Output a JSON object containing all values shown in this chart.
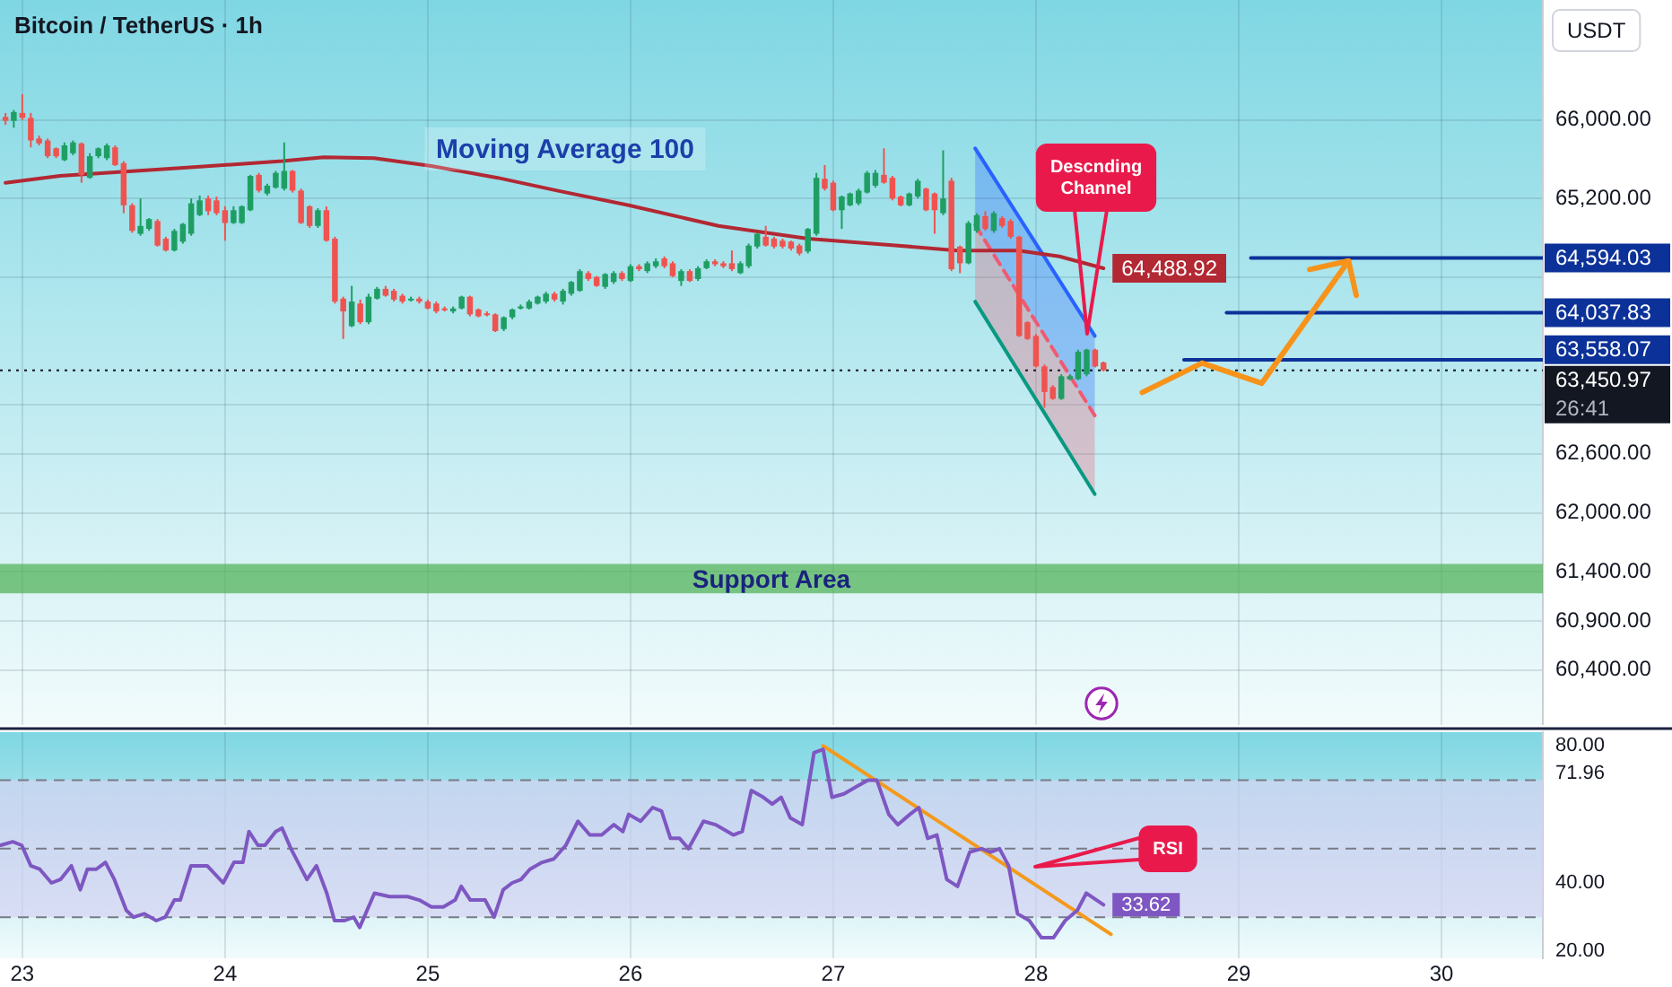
{
  "chart_data": [
    {
      "type": "candlestick",
      "title": "Bitcoin / TetherUS · 1h",
      "ylabel": "USDT",
      "x": [
        22.917,
        22.958,
        23,
        23.042,
        23.083,
        23.125,
        23.167,
        23.208,
        23.25,
        23.292,
        23.333,
        23.375,
        23.417,
        23.458,
        23.5,
        23.542,
        23.583,
        23.625,
        23.667,
        23.708,
        23.75,
        23.792,
        23.833,
        23.875,
        23.917,
        23.958,
        24,
        24.042,
        24.083,
        24.125,
        24.167,
        24.208,
        24.25,
        24.292,
        24.333,
        24.375,
        24.417,
        24.458,
        24.5,
        24.542,
        24.583,
        24.625,
        24.667,
        24.708,
        24.75,
        24.792,
        24.833,
        24.875,
        24.917,
        24.958,
        25,
        25.042,
        25.083,
        25.125,
        25.167,
        25.208,
        25.25,
        25.292,
        25.333,
        25.375,
        25.417,
        25.458,
        25.5,
        25.542,
        25.583,
        25.625,
        25.667,
        25.708,
        25.75,
        25.792,
        25.833,
        25.875,
        25.917,
        25.958,
        26,
        26.042,
        26.083,
        26.125,
        26.167,
        26.208,
        26.25,
        26.292,
        26.333,
        26.375,
        26.417,
        26.458,
        26.5,
        26.542,
        26.583,
        26.625,
        26.667,
        26.708,
        26.75,
        26.792,
        26.833,
        26.875,
        26.917,
        26.958,
        27,
        27.042,
        27.083,
        27.125,
        27.167,
        27.208,
        27.25,
        27.292,
        27.333,
        27.375,
        27.417,
        27.458,
        27.5,
        27.542,
        27.583,
        27.625,
        27.667,
        27.708,
        27.75,
        27.792,
        27.833,
        27.875,
        27.917,
        27.958,
        28,
        28.042,
        28.083,
        28.125,
        28.167,
        28.208,
        28.25,
        28.292,
        28.333
      ],
      "ohlc": [
        [
          66030,
          66070,
          65950,
          65990
        ],
        [
          65990,
          66100,
          65920,
          66080
        ],
        [
          66070,
          66260,
          66000,
          66020
        ],
        [
          66020,
          66070,
          65720,
          65790
        ],
        [
          65810,
          65840,
          65740,
          65760
        ],
        [
          65790,
          65810,
          65610,
          65630
        ],
        [
          65710,
          65720,
          65610,
          65630
        ],
        [
          65590,
          65770,
          65580,
          65740
        ],
        [
          65660,
          65790,
          65640,
          65770
        ],
        [
          65760,
          65770,
          65360,
          65440
        ],
        [
          65410,
          65660,
          65400,
          65630
        ],
        [
          65630,
          65720,
          65610,
          65710
        ],
        [
          65610,
          65760,
          65590,
          65740
        ],
        [
          65720,
          65740,
          65530,
          65540
        ],
        [
          65560,
          65580,
          65050,
          65130
        ],
        [
          65130,
          65150,
          64850,
          64870
        ],
        [
          64840,
          65200,
          64820,
          64920
        ],
        [
          64890,
          65000,
          64870,
          64990
        ],
        [
          64970,
          64990,
          64710,
          64720
        ],
        [
          64790,
          64810,
          64660,
          64670
        ],
        [
          64670,
          64890,
          64660,
          64870
        ],
        [
          64760,
          64950,
          64740,
          64940
        ],
        [
          64840,
          65200,
          64820,
          65150
        ],
        [
          65030,
          65230,
          65020,
          65180
        ],
        [
          65200,
          65230,
          65030,
          65070
        ],
        [
          65180,
          65220,
          65030,
          65050
        ],
        [
          65080,
          65120,
          64770,
          64950
        ],
        [
          64950,
          65120,
          64940,
          65080
        ],
        [
          64950,
          65130,
          64940,
          65120
        ],
        [
          65080,
          65440,
          65070,
          65430
        ],
        [
          65440,
          65460,
          65260,
          65280
        ],
        [
          65250,
          65350,
          65230,
          65330
        ],
        [
          65310,
          65480,
          65300,
          65460
        ],
        [
          65300,
          65770,
          65280,
          65480
        ],
        [
          65480,
          65490,
          65260,
          65280
        ],
        [
          65280,
          65300,
          64940,
          64950
        ],
        [
          65120,
          65130,
          64900,
          64920
        ],
        [
          64920,
          65100,
          64900,
          65080
        ],
        [
          65080,
          65120,
          64760,
          64770
        ],
        [
          64790,
          64810,
          64130,
          64150
        ],
        [
          64180,
          64200,
          63770,
          64050
        ],
        [
          63900,
          64310,
          63890,
          64150
        ],
        [
          64130,
          64170,
          63920,
          63940
        ],
        [
          63940,
          64230,
          63920,
          64200
        ],
        [
          64180,
          64300,
          64170,
          64280
        ],
        [
          64280,
          64310,
          64200,
          64210
        ],
        [
          64260,
          64280,
          64150,
          64170
        ],
        [
          64210,
          64230,
          64130,
          64150
        ],
        [
          64170,
          64200,
          64150,
          64180
        ],
        [
          64180,
          64200,
          64130,
          64150
        ],
        [
          64150,
          64170,
          64070,
          64080
        ],
        [
          64130,
          64150,
          64030,
          64050
        ],
        [
          64080,
          64100,
          64050,
          64070
        ],
        [
          64050,
          64100,
          64030,
          64080
        ],
        [
          64080,
          64210,
          64070,
          64200
        ],
        [
          64200,
          64210,
          64000,
          64020
        ],
        [
          64070,
          64080,
          63990,
          64000
        ],
        [
          64030,
          64050,
          64000,
          64020
        ],
        [
          64020,
          64030,
          63840,
          63850
        ],
        [
          63870,
          64000,
          63850,
          63990
        ],
        [
          63990,
          64080,
          63970,
          64070
        ],
        [
          64080,
          64120,
          64070,
          64100
        ],
        [
          64080,
          64170,
          64070,
          64150
        ],
        [
          64130,
          64210,
          64120,
          64200
        ],
        [
          64150,
          64250,
          64130,
          64230
        ],
        [
          64230,
          64250,
          64150,
          64170
        ],
        [
          64150,
          64280,
          64120,
          64260
        ],
        [
          64230,
          64360,
          64210,
          64350
        ],
        [
          64260,
          64480,
          64250,
          64460
        ],
        [
          64440,
          64460,
          64360,
          64380
        ],
        [
          64400,
          64410,
          64300,
          64310
        ],
        [
          64300,
          64440,
          64280,
          64430
        ],
        [
          64350,
          64460,
          64330,
          64440
        ],
        [
          64440,
          64460,
          64360,
          64380
        ],
        [
          64360,
          64530,
          64350,
          64510
        ],
        [
          64510,
          64530,
          64460,
          64480
        ],
        [
          64460,
          64560,
          64440,
          64540
        ],
        [
          64510,
          64590,
          64490,
          64560
        ],
        [
          64590,
          64610,
          64490,
          64510
        ],
        [
          64540,
          64560,
          64400,
          64410
        ],
        [
          64360,
          64480,
          64310,
          64460
        ],
        [
          64460,
          64480,
          64350,
          64360
        ],
        [
          64380,
          64510,
          64360,
          64490
        ],
        [
          64490,
          64580,
          64480,
          64560
        ],
        [
          64560,
          64580,
          64510,
          64530
        ],
        [
          64540,
          64560,
          64490,
          64510
        ],
        [
          64540,
          64670,
          64460,
          64480
        ],
        [
          64440,
          64560,
          64430,
          64540
        ],
        [
          64510,
          64740,
          64490,
          64720
        ],
        [
          64710,
          64850,
          64690,
          64840
        ],
        [
          64810,
          64920,
          64710,
          64720
        ],
        [
          64790,
          64810,
          64690,
          64710
        ],
        [
          64770,
          64790,
          64690,
          64710
        ],
        [
          64760,
          64770,
          64670,
          64690
        ],
        [
          64720,
          64740,
          64620,
          64640
        ],
        [
          64660,
          64900,
          64640,
          64890
        ],
        [
          64840,
          65460,
          64820,
          65410
        ],
        [
          65400,
          65540,
          65280,
          65300
        ],
        [
          65360,
          65380,
          65070,
          65080
        ],
        [
          65080,
          65230,
          64890,
          65220
        ],
        [
          65130,
          65260,
          65120,
          65250
        ],
        [
          65150,
          65300,
          65130,
          65280
        ],
        [
          65260,
          65480,
          65250,
          65460
        ],
        [
          65330,
          65490,
          65310,
          65460
        ],
        [
          65440,
          65710,
          65350,
          65360
        ],
        [
          65410,
          65430,
          65180,
          65200
        ],
        [
          65220,
          65230,
          65120,
          65130
        ],
        [
          65130,
          65260,
          65120,
          65250
        ],
        [
          65220,
          65400,
          65200,
          65380
        ],
        [
          65300,
          65310,
          65070,
          65080
        ],
        [
          65250,
          65260,
          64840,
          65080
        ],
        [
          65050,
          65690,
          65030,
          65200
        ],
        [
          65380,
          65410,
          64460,
          64480
        ],
        [
          64710,
          64720,
          64440,
          64540
        ],
        [
          64540,
          64970,
          64530,
          64950
        ],
        [
          64870,
          65050,
          64850,
          65030
        ],
        [
          65020,
          65070,
          64870,
          64890
        ],
        [
          64870,
          65070,
          64850,
          65050
        ],
        [
          65000,
          65020,
          64900,
          64920
        ],
        [
          64970,
          64990,
          64790,
          64810
        ],
        [
          64810,
          64820,
          63790,
          63800
        ],
        [
          63940,
          63950,
          63760,
          63770
        ],
        [
          63800,
          63820,
          63480,
          63490
        ],
        [
          63490,
          63510,
          63070,
          63230
        ],
        [
          63280,
          63300,
          63150,
          63160
        ],
        [
          63160,
          63410,
          63150,
          63390
        ],
        [
          63360,
          63410,
          63350,
          63390
        ],
        [
          63360,
          63660,
          63350,
          63640
        ],
        [
          63410,
          63670,
          63390,
          63660
        ],
        [
          63660,
          63670,
          63480,
          63490
        ],
        [
          63530,
          63540,
          63440,
          63450.97
        ]
      ],
      "colors": [
        "#ef5350",
        "#1f9e63",
        "#ef5350",
        "#ef5350",
        "#ef5350",
        "#ef5350",
        "#ef5350",
        "#1f9e63",
        "#1f9e63",
        "#ef5350",
        "#1f9e63",
        "#1f9e63",
        "#1f9e63",
        "#ef5350",
        "#ef5350",
        "#ef5350",
        "#1f9e63",
        "#1f9e63",
        "#ef5350",
        "#ef5350",
        "#1f9e63",
        "#1f9e63",
        "#1f9e63",
        "#1f9e63",
        "#ef5350",
        "#ef5350",
        "#ef5350",
        "#1f9e63",
        "#1f9e63",
        "#1f9e63",
        "#ef5350",
        "#1f9e63",
        "#1f9e63",
        "#1f9e63",
        "#ef5350",
        "#ef5350",
        "#ef5350",
        "#1f9e63",
        "#ef5350",
        "#ef5350",
        "#ef5350",
        "#1f9e63",
        "#ef5350",
        "#1f9e63",
        "#1f9e63",
        "#ef5350",
        "#ef5350",
        "#ef5350",
        "#1f9e63",
        "#ef5350",
        "#ef5350",
        "#ef5350",
        "#ef5350",
        "#1f9e63",
        "#1f9e63",
        "#ef5350",
        "#ef5350",
        "#ef5350",
        "#ef5350",
        "#1f9e63",
        "#1f9e63",
        "#1f9e63",
        "#1f9e63",
        "#1f9e63",
        "#1f9e63",
        "#ef5350",
        "#1f9e63",
        "#1f9e63",
        "#1f9e63",
        "#ef5350",
        "#ef5350",
        "#1f9e63",
        "#1f9e63",
        "#ef5350",
        "#1f9e63",
        "#ef5350",
        "#1f9e63",
        "#1f9e63",
        "#ef5350",
        "#ef5350",
        "#1f9e63",
        "#ef5350",
        "#1f9e63",
        "#1f9e63",
        "#ef5350",
        "#ef5350",
        "#ef5350",
        "#1f9e63",
        "#1f9e63",
        "#1f9e63",
        "#ef5350",
        "#ef5350",
        "#ef5350",
        "#ef5350",
        "#ef5350",
        "#1f9e63",
        "#1f9e63",
        "#ef5350",
        "#ef5350",
        "#1f9e63",
        "#1f9e63",
        "#1f9e63",
        "#1f9e63",
        "#1f9e63",
        "#ef5350",
        "#ef5350",
        "#ef5350",
        "#1f9e63",
        "#1f9e63",
        "#ef5350",
        "#ef5350",
        "#1f9e63",
        "#ef5350",
        "#ef5350",
        "#1f9e63",
        "#1f9e63",
        "#ef5350",
        "#1f9e63",
        "#ef5350",
        "#ef5350",
        "#ef5350",
        "#ef5350",
        "#ef5350",
        "#ef5350",
        "#ef5350",
        "#1f9e63",
        "#1f9e63",
        "#1f9e63",
        "#1f9e63",
        "#ef5350",
        "#ef5350"
      ],
      "series": [
        {
          "type": "line",
          "color": "#b22833",
          "x": [
            22.917,
            23.186,
            23.779,
            24.283,
            24.487,
            24.735,
            25.018,
            25.345,
            25.637,
            25.991,
            26.434,
            26.876,
            27.319,
            27.611,
            27.912,
            28.115,
            28.333
          ],
          "values": [
            65360,
            65430,
            65510,
            65580,
            65620,
            65610,
            65530,
            65410,
            65280,
            65130,
            64920,
            64790,
            64720,
            64670,
            64670,
            64610,
            64488.92
          ],
          "value_labels": [
            null,
            null,
            null,
            null,
            null,
            null,
            null,
            null,
            null,
            null,
            null,
            null,
            null,
            null,
            null,
            null,
            "64,488.92"
          ]
        },
        {
          "type": "line",
          "color": "#2962ff",
          "x": [
            27.7,
            28.29
          ],
          "values": [
            65710,
            63800
          ],
          "lower": [
            64930,
            62990
          ],
          "upper": [
            65710,
            63800
          ]
        },
        {
          "type": "line",
          "color": "#ef5a72",
          "line_style": "dashed",
          "x": [
            27.7,
            28.29
          ],
          "values": [
            64930,
            62990
          ],
          "lower": [
            64150,
            62190
          ],
          "upper": [
            64930,
            62990
          ]
        },
        {
          "type": "line",
          "color": "#089981",
          "x": [
            27.7,
            28.29
          ],
          "values": [
            64150,
            62190
          ]
        },
        {
          "type": "line",
          "color": "#0c3299",
          "x": [
            29.06,
            30.5
          ],
          "values": [
            64594.03,
            64594.03
          ],
          "value_labels": [
            null,
            "64,594.03"
          ]
        },
        {
          "type": "line",
          "color": "#0c3299",
          "x": [
            28.94,
            30.5
          ],
          "values": [
            64037.83,
            64037.83
          ],
          "value_labels": [
            null,
            "64,037.83"
          ]
        },
        {
          "type": "line",
          "color": "#0c3299",
          "x": [
            28.73,
            30.5
          ],
          "values": [
            63558.07,
            63558.07
          ],
          "value_labels": [
            null,
            "63,558.07"
          ]
        }
      ],
      "ref_lines": [
        {
          "axis": "y",
          "value": 63450.97,
          "label": "63,450.97",
          "color": "#131722",
          "line_style": "dotted"
        }
      ],
      "bands": [
        {
          "axis": "y",
          "from": 61180,
          "to": 61480,
          "label": "Support Area",
          "color": "#4caf50"
        }
      ],
      "annotations": [
        "Moving Average 100",
        "Descnding Channel",
        "26:41"
      ],
      "xlim": [
        22.89,
        30.5
      ],
      "xticks": [
        23,
        24,
        25,
        26,
        27,
        28,
        29,
        30
      ],
      "ylim": [
        59840,
        67220
      ],
      "yticks": [
        {
          "value": 60400,
          "label": "60,400.00"
        },
        {
          "value": 60900,
          "label": "60,900.00"
        },
        {
          "value": 61400,
          "label": "61,400.00"
        },
        {
          "value": 62000,
          "label": "62,000.00"
        },
        {
          "value": 62600,
          "label": "62,600.00"
        },
        {
          "value": 63100,
          "label": null
        },
        {
          "value": 64400,
          "label": null
        },
        {
          "value": 65200,
          "label": "65,200.00"
        },
        {
          "value": 66000,
          "label": "66,000.00"
        }
      ],
      "grid": true,
      "tick_labels": "y"
    },
    {
      "type": "line",
      "series": [
        {
          "color": "#7e57c2",
          "x": [
            22.894,
            22.953,
            22.997,
            23.042,
            23.086,
            23.144,
            23.188,
            23.242,
            23.286,
            23.321,
            23.365,
            23.41,
            23.454,
            23.513,
            23.549,
            23.602,
            23.661,
            23.705,
            23.75,
            23.779,
            23.832,
            23.912,
            23.991,
            24.044,
            24.088,
            24.118,
            24.162,
            24.197,
            24.25,
            24.281,
            24.325,
            24.404,
            24.451,
            24.502,
            24.54,
            24.59,
            24.635,
            24.664,
            24.737,
            24.812,
            24.9,
            24.958,
            25.018,
            25.077,
            25.135,
            25.165,
            25.21,
            25.283,
            25.327,
            25.372,
            25.416,
            25.46,
            25.504,
            25.564,
            25.622,
            25.681,
            25.741,
            25.799,
            25.858,
            25.918,
            25.962,
            25.991,
            26.05,
            26.109,
            26.153,
            26.197,
            26.242,
            26.286,
            26.36,
            26.419,
            26.507,
            26.551,
            26.596,
            26.655,
            26.699,
            26.743,
            26.788,
            26.847,
            26.905,
            26.95,
            26.994,
            27.053,
            27.112,
            27.171,
            27.215,
            27.274,
            27.319,
            27.378,
            27.422,
            27.466,
            27.511,
            27.56,
            27.613,
            27.673,
            27.732,
            27.776,
            27.82,
            27.865,
            27.909,
            27.967,
            28.027,
            28.086,
            28.144,
            28.204,
            28.248,
            28.333
          ],
          "values": [
            51,
            52,
            51,
            45,
            44,
            40,
            41,
            45,
            38,
            44,
            44,
            46,
            41,
            32,
            30,
            31,
            29,
            30,
            35,
            35,
            45,
            45,
            40,
            46,
            46,
            55,
            51,
            51,
            55,
            56,
            50,
            41,
            45,
            37,
            29,
            29,
            30,
            27,
            37,
            36,
            36,
            35,
            33,
            33,
            35,
            39,
            35,
            35,
            30,
            38,
            40,
            41,
            44,
            46,
            47,
            51,
            58,
            54,
            54,
            57,
            55,
            60,
            58,
            62,
            61,
            53,
            53,
            50,
            58,
            57,
            54,
            55,
            67,
            65,
            63,
            65,
            59,
            57,
            78,
            79,
            65,
            66,
            68,
            70,
            70,
            60,
            57,
            60,
            62,
            53,
            54,
            41,
            39,
            49,
            50,
            49,
            50,
            45,
            31,
            29,
            24,
            24,
            29,
            32,
            37,
            33.62
          ],
          "value_labels": [
            null,
            null,
            null,
            null,
            null,
            null,
            null,
            null,
            null,
            null,
            null,
            null,
            null,
            null,
            null,
            null,
            null,
            null,
            null,
            null,
            null,
            null,
            null,
            null,
            null,
            null,
            null,
            null,
            null,
            null,
            null,
            null,
            null,
            null,
            null,
            null,
            null,
            null,
            null,
            null,
            null,
            null,
            null,
            null,
            null,
            null,
            null,
            null,
            null,
            null,
            null,
            null,
            null,
            null,
            null,
            null,
            null,
            null,
            null,
            null,
            null,
            null,
            null,
            null,
            null,
            null,
            null,
            null,
            null,
            null,
            null,
            null,
            null,
            null,
            null,
            null,
            null,
            null,
            null,
            null,
            null,
            null,
            null,
            null,
            null,
            null,
            null,
            null,
            null,
            null,
            null,
            null,
            null,
            null,
            null,
            null,
            null,
            null,
            null,
            null,
            null,
            null,
            null,
            null,
            null,
            "33.62"
          ]
        },
        {
          "color": "#f39a1e",
          "x": [
            26.95,
            28.37
          ],
          "values": [
            80,
            25
          ]
        }
      ],
      "ref_lines": [
        {
          "axis": "y",
          "value": 70,
          "color": "#787b86",
          "line_style": "dashed"
        },
        {
          "axis": "y",
          "value": 50,
          "color": "#787b86",
          "line_style": "dashed"
        },
        {
          "axis": "y",
          "value": 30,
          "color": "#787b86",
          "line_style": "dashed"
        }
      ],
      "bands": [
        {
          "axis": "y",
          "from": 30,
          "to": 70,
          "color": "#d6d3f2"
        }
      ],
      "annotations": [
        "RSI"
      ],
      "xlim": [
        22.89,
        30.5
      ],
      "xticks": [
        23,
        24,
        25,
        26,
        27,
        28,
        29,
        30
      ],
      "ylim": [
        18,
        84
      ],
      "yticks": [
        {
          "value": 80,
          "label": "80.00"
        },
        {
          "value": 71.96,
          "label": "71.96"
        },
        {
          "value": 40,
          "label": "40.00"
        },
        {
          "value": 20,
          "label": "20.00"
        }
      ],
      "grid": "x"
    }
  ]
}
